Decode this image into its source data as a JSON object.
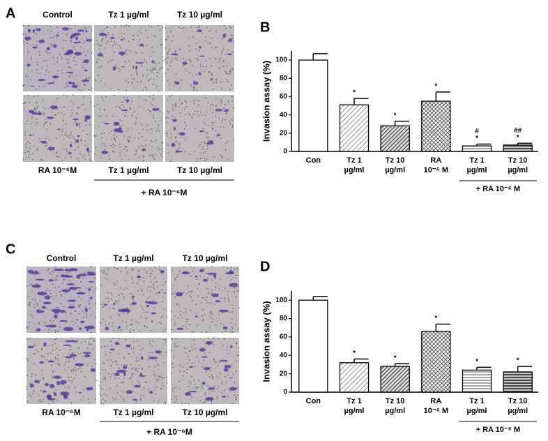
{
  "photo_panels": [
    {
      "label": "A",
      "top_captions": [
        "Control",
        "Tz 1 µg/ml",
        "Tz 10 µg/ml"
      ],
      "bottom_captions": [
        "RA 10⁻⁶M",
        "Tz 1 µg/ml",
        "Tz 10 µg/ml"
      ],
      "group_caption": "+ RA 10⁻⁶M"
    },
    {
      "label": "C",
      "top_captions": [
        "Control",
        "Tz 1 µg/ml",
        "Tz 10 µg/ml"
      ],
      "bottom_captions": [
        "RA 10⁻⁶M",
        "Tz 1 µg/ml",
        "Tz 10 µg/ml"
      ],
      "group_caption": "+ RA 10⁻⁶M"
    }
  ],
  "chart_data": [
    {
      "type": "bar",
      "panel_label": "B",
      "ylabel": "Invasion assay (%)",
      "categories": [
        [
          "Con"
        ],
        [
          "Tz 1",
          "µg/ml"
        ],
        [
          "Tz 10",
          "µg/ml"
        ],
        [
          "RA",
          "10⁻⁶ M"
        ],
        [
          "Tz 1",
          "µg/ml"
        ],
        [
          "Tz 10",
          "µg/ml"
        ]
      ],
      "values": [
        100,
        51,
        28,
        55,
        6,
        7
      ],
      "errors": [
        7,
        7,
        5,
        10,
        2,
        2
      ],
      "annotations": [
        null,
        [
          "*"
        ],
        [
          "*"
        ],
        [
          "*"
        ],
        [
          "#",
          "*"
        ],
        [
          "##",
          "*"
        ]
      ],
      "fills": [
        "white",
        "hatch-light",
        "hatch-dark",
        "crosshatch",
        "stripes-light",
        "stripes-dark"
      ],
      "group_label": "+ RA 10⁻⁶ M",
      "ylim": [
        0,
        110
      ],
      "yticks": [
        0,
        20,
        40,
        60,
        80,
        100
      ]
    },
    {
      "type": "bar",
      "panel_label": "D",
      "ylabel": "Invasion assay (%)",
      "categories": [
        [
          "Con"
        ],
        [
          "Tz 1",
          "µg/ml"
        ],
        [
          "Tz 10",
          "µg/ml"
        ],
        [
          "RA",
          "10⁻⁶ M"
        ],
        [
          "Tz 1",
          "µg/ml"
        ],
        [
          "Tz 10",
          "µg/ml"
        ]
      ],
      "values": [
        100,
        32,
        28,
        66,
        24,
        22
      ],
      "errors": [
        4,
        4,
        3,
        8,
        3,
        6
      ],
      "annotations": [
        null,
        [
          "*"
        ],
        [
          "*"
        ],
        [
          "*"
        ],
        [
          "*"
        ],
        [
          "*"
        ]
      ],
      "fills": [
        "white",
        "hatch-light",
        "hatch-dark",
        "crosshatch",
        "stripes-light",
        "stripes-dark"
      ],
      "group_label": "+ RA 10⁻⁶ M",
      "ylim": [
        0,
        110
      ],
      "yticks": [
        0,
        20,
        40,
        60,
        80,
        100
      ]
    }
  ]
}
